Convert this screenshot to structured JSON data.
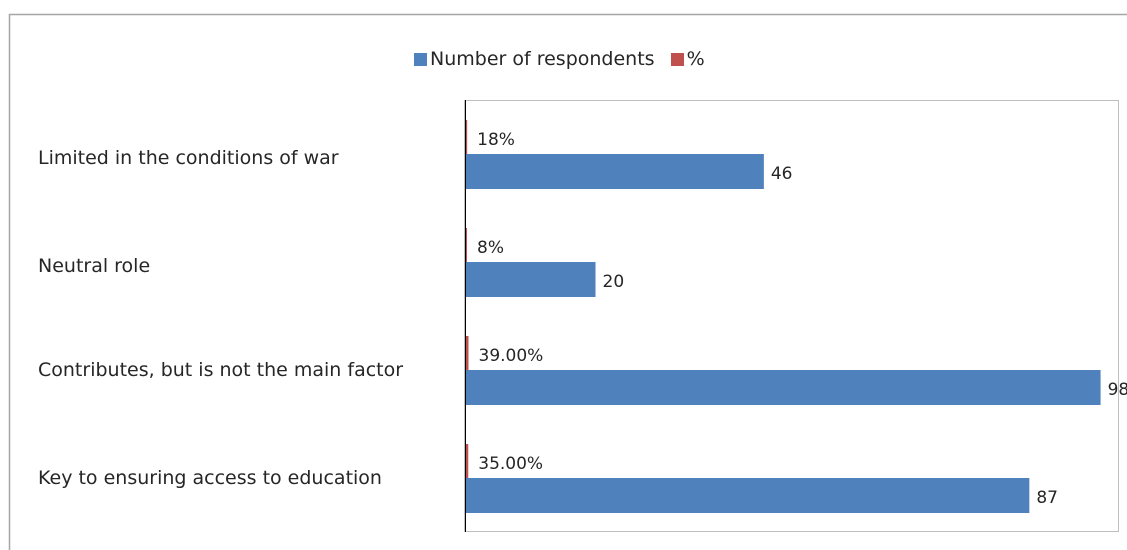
{
  "chart_data": {
    "type": "bar",
    "orientation": "horizontal",
    "categories": [
      "Limited in the conditions of war",
      "Neutral role",
      "Contributes, but is not the main factor",
      "Key to ensuring access to education"
    ],
    "series": [
      {
        "name": "Number of respondents",
        "values": [
          46,
          20,
          98,
          87
        ],
        "labels": [
          "46",
          "20",
          "98",
          "87"
        ],
        "color": "#4f81bd"
      },
      {
        "name": "%",
        "values": [
          0.18,
          0.08,
          0.39,
          0.35
        ],
        "labels": [
          "18%",
          "8%",
          "39.00%",
          "35.00%"
        ],
        "color": "#c0504d"
      }
    ],
    "xlim": [
      0,
      101
    ],
    "grid": false,
    "legend_position": "top"
  },
  "colors": {
    "border": "#a6a6a6",
    "plot_border": "#bfbfbf",
    "axis": "#000000"
  }
}
